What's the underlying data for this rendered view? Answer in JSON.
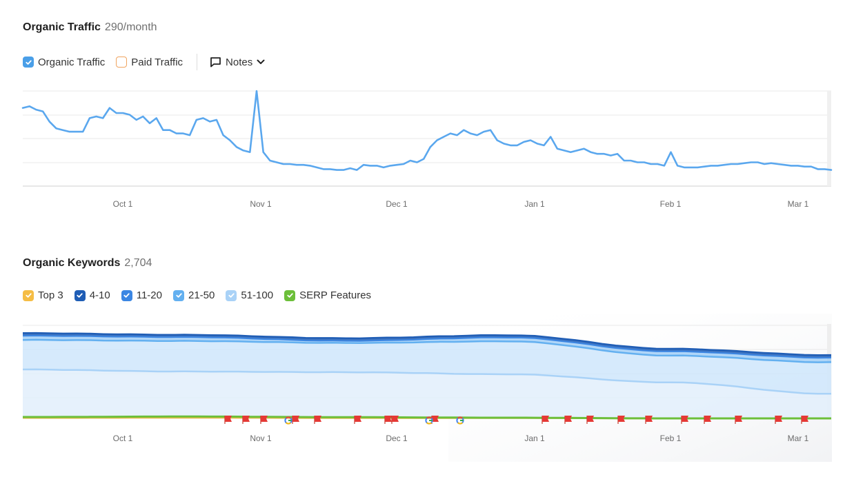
{
  "traffic": {
    "title": "Organic Traffic",
    "metric": "290/month",
    "legend": [
      {
        "label": "Organic Traffic",
        "checked": true,
        "color": "#4a9fe8"
      },
      {
        "label": "Paid Traffic",
        "checked": false,
        "color": "#f0a35e"
      }
    ],
    "notes_label": "Notes"
  },
  "keywords": {
    "title": "Organic Keywords",
    "metric": "2,704",
    "legend": [
      {
        "label": "Top 3",
        "checked": true,
        "color": "#f5bd45"
      },
      {
        "label": "4-10",
        "checked": true,
        "color": "#1f5db5"
      },
      {
        "label": "11-20",
        "checked": true,
        "color": "#3b86e3"
      },
      {
        "label": "21-50",
        "checked": true,
        "color": "#63b0f0"
      },
      {
        "label": "51-100",
        "checked": true,
        "color": "#a9d2f7"
      },
      {
        "label": "SERP Features",
        "checked": true,
        "color": "#6cbf3a"
      }
    ]
  },
  "chart_data": [
    {
      "type": "line",
      "title": "Organic Traffic",
      "x_ticks": [
        "Oct 1",
        "Nov 1",
        "Dec 1",
        "Jan 1",
        "Feb 1",
        "Mar 1"
      ],
      "grid": true,
      "series": [
        {
          "name": "Organic Traffic",
          "color": "#5aa7ee",
          "values": [
            460,
            470,
            450,
            440,
            380,
            340,
            330,
            320,
            320,
            320,
            400,
            410,
            400,
            460,
            430,
            430,
            420,
            390,
            410,
            370,
            400,
            330,
            330,
            310,
            310,
            300,
            390,
            400,
            380,
            390,
            300,
            270,
            230,
            210,
            200,
            560,
            200,
            150,
            140,
            130,
            130,
            125,
            125,
            120,
            110,
            100,
            100,
            95,
            95,
            105,
            95,
            125,
            120,
            120,
            110,
            120,
            125,
            130,
            150,
            140,
            160,
            230,
            270,
            290,
            310,
            300,
            330,
            310,
            300,
            320,
            330,
            270,
            250,
            240,
            240,
            260,
            270,
            250,
            240,
            290,
            220,
            210,
            200,
            210,
            220,
            200,
            190,
            190,
            180,
            190,
            150,
            150,
            140,
            140,
            130,
            130,
            120,
            200,
            120,
            110,
            110,
            110,
            115,
            120,
            120,
            125,
            130,
            130,
            135,
            140,
            140,
            130,
            135,
            130,
            125,
            120,
            120,
            115,
            115,
            100,
            100,
            95
          ]
        }
      ]
    },
    {
      "type": "area",
      "title": "Organic Keywords",
      "x_ticks": [
        "Oct 1",
        "Nov 1",
        "Dec 1",
        "Jan 1",
        "Feb 1",
        "Mar 1"
      ],
      "grid": true,
      "series": [
        {
          "name": "SERP Features",
          "color": "#6cbf3a",
          "values": [
            60,
            75,
            55,
            40,
            20,
            20
          ]
        },
        {
          "name": "Top 3",
          "color": "#f5bd45",
          "values": [
            30,
            35,
            28,
            25,
            15,
            15
          ]
        },
        {
          "name": "51-100",
          "color": "#a9d2f7",
          "values": [
            1460,
            1400,
            1380,
            1320,
            1080,
            740
          ]
        },
        {
          "name": "21-50",
          "color": "#63b0f0",
          "values": [
            2330,
            2300,
            2240,
            2290,
            1870,
            1670
          ]
        },
        {
          "name": "11-20",
          "color": "#3b86e3",
          "values": [
            2450,
            2410,
            2300,
            2400,
            1990,
            1800
          ]
        },
        {
          "name": "4-10",
          "color": "#1f5db5",
          "values": [
            2530,
            2480,
            2380,
            2470,
            2070,
            1880
          ]
        }
      ]
    }
  ]
}
